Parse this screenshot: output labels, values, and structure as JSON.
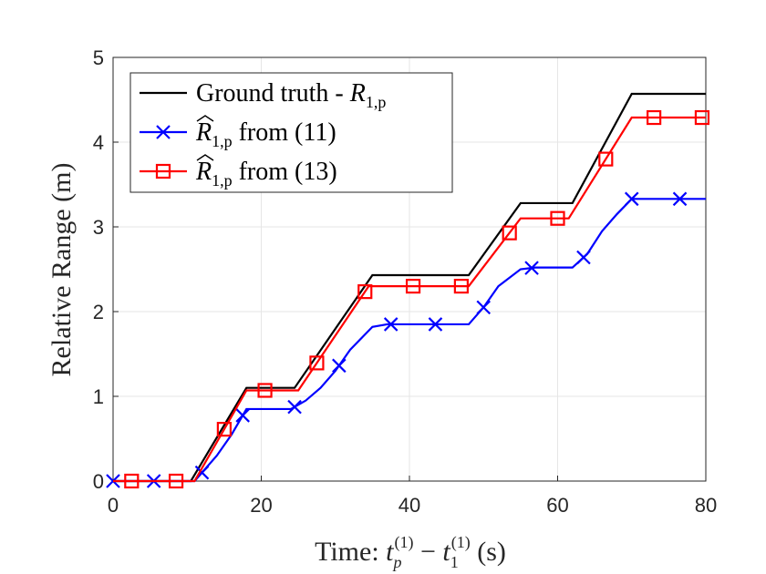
{
  "chart_data": {
    "type": "line",
    "title": "",
    "xlabel": "Time: t_p^(1) − t_1^(1) (s)",
    "xlabel_parts": {
      "prefix": "Time: ",
      "t": "t",
      "sub1": "p",
      "sup1": "(1)",
      "minus": " − ",
      "sub2": "1",
      "sup2": "(1)",
      "unit": " (s)"
    },
    "ylabel": "Relative Range (m)",
    "xlim": [
      0,
      80
    ],
    "ylim": [
      0,
      5
    ],
    "xticks": [
      "0",
      "20",
      "40",
      "60",
      "80"
    ],
    "yticks": [
      "0",
      "1",
      "2",
      "3",
      "4",
      "5"
    ],
    "grid": true,
    "legend_position": "top-left",
    "series": [
      {
        "name": "Ground truth - R_{1,p}",
        "legend_parts": {
          "text": "Ground truth - ",
          "sym": "R",
          "sub": "1,p"
        },
        "color": "#000000",
        "marker": "none",
        "x": [
          0,
          10.5,
          18,
          24.5,
          35,
          48,
          55,
          62,
          70,
          80
        ],
        "y": [
          0,
          0,
          1.1,
          1.1,
          2.43,
          2.43,
          3.28,
          3.28,
          4.57,
          4.57
        ],
        "markers_x": []
      },
      {
        "name": "R̂_{1,p} from (11)",
        "legend_parts": {
          "sym": "R",
          "sub": "1,p",
          "text": " from (11)"
        },
        "color": "#0000ff",
        "marker": "x",
        "x": [
          0,
          11,
          14,
          16,
          18,
          24,
          26,
          28,
          30,
          32,
          35,
          37,
          48,
          50,
          52,
          55,
          57,
          62,
          64,
          66,
          68,
          70,
          80
        ],
        "y": [
          0,
          0,
          0.3,
          0.55,
          0.85,
          0.85,
          0.95,
          1.1,
          1.3,
          1.55,
          1.82,
          1.85,
          1.85,
          2.05,
          2.3,
          2.5,
          2.52,
          2.52,
          2.68,
          2.95,
          3.15,
          3.33,
          3.33
        ],
        "markers_x": [
          0,
          5.5,
          12,
          17.5,
          24.5,
          30.5,
          37.5,
          43.5,
          50,
          56.5,
          63.5,
          70,
          76.5
        ]
      },
      {
        "name": "R̂_{1,p} from (13)",
        "legend_parts": {
          "sym": "R",
          "sub": "1,p",
          "text": " from (13)"
        },
        "color": "#ff0000",
        "marker": "square",
        "x": [
          0,
          11,
          18,
          25,
          34.5,
          48,
          55,
          61.5,
          70,
          80
        ],
        "y": [
          0,
          0,
          1.07,
          1.07,
          2.3,
          2.3,
          3.1,
          3.1,
          4.29,
          4.29
        ],
        "markers_x": [
          2.5,
          8.5,
          15,
          20.5,
          27.5,
          34,
          40.5,
          47,
          53.5,
          60,
          66.5,
          73,
          79.5
        ]
      }
    ]
  }
}
